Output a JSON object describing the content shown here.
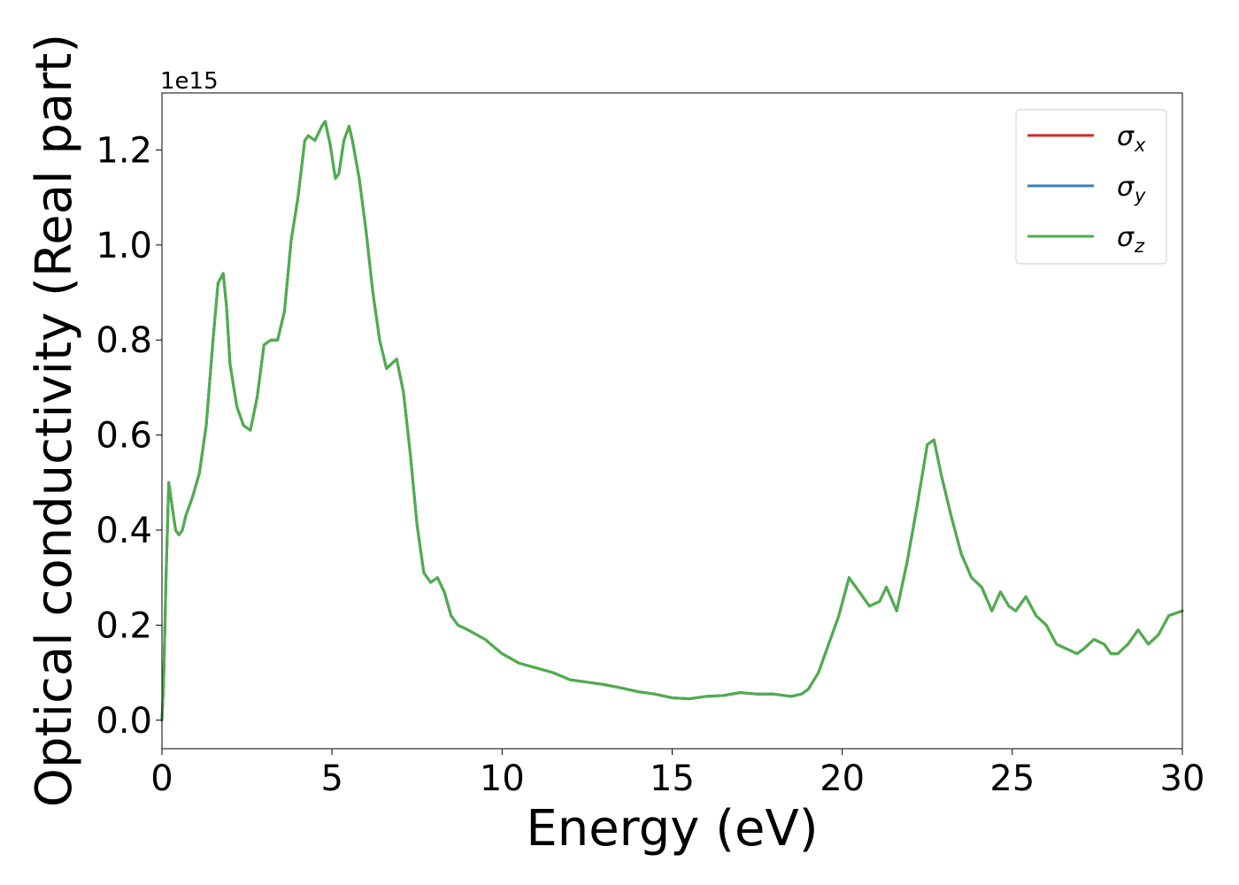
{
  "chart_data": {
    "type": "line",
    "xlabel": "Energy (eV)",
    "ylabel": "Optical conductivity (Real part)",
    "y_offset_label": "1e15",
    "xlim": [
      0,
      30
    ],
    "ylim": [
      -0.06,
      1.32
    ],
    "x_ticks": [
      0,
      5,
      10,
      15,
      20,
      25,
      30
    ],
    "x_tick_labels": [
      "0",
      "5",
      "10",
      "15",
      "20",
      "25",
      "30"
    ],
    "y_ticks": [
      0.0,
      0.2,
      0.4,
      0.6,
      0.8,
      1.0,
      1.2
    ],
    "y_tick_labels": [
      "0.0",
      "0.2",
      "0.4",
      "0.6",
      "0.8",
      "1.0",
      "1.2"
    ],
    "grid": false,
    "legend_position": "top-right",
    "series": [
      {
        "name": "σx",
        "symbol": "σ",
        "subscript": "x",
        "color": "#d62728",
        "x": [
          0,
          0.05,
          0.12,
          0.2,
          0.3,
          0.4,
          0.5,
          0.6,
          0.7,
          0.9,
          1.1,
          1.3,
          1.5,
          1.65,
          1.8,
          1.9,
          2.0,
          2.2,
          2.4,
          2.6,
          2.8,
          3.0,
          3.2,
          3.4,
          3.6,
          3.8,
          4.0,
          4.2,
          4.3,
          4.5,
          4.7,
          4.8,
          4.95,
          5.1,
          5.2,
          5.35,
          5.5,
          5.6,
          5.8,
          6.0,
          6.2,
          6.4,
          6.6,
          6.75,
          6.9,
          7.1,
          7.3,
          7.5,
          7.7,
          7.9,
          8.1,
          8.3,
          8.5,
          8.7,
          9.0,
          9.5,
          10.0,
          10.5,
          11.0,
          11.5,
          12.0,
          12.5,
          13.0,
          13.5,
          14.0,
          14.5,
          15.0,
          15.5,
          16.0,
          16.5,
          17.0,
          17.5,
          18.0,
          18.5,
          18.8,
          19.0,
          19.3,
          19.6,
          19.9,
          20.2,
          20.5,
          20.8,
          21.1,
          21.3,
          21.6,
          21.9,
          22.2,
          22.5,
          22.7,
          22.9,
          23.2,
          23.5,
          23.8,
          24.1,
          24.4,
          24.65,
          24.9,
          25.1,
          25.4,
          25.7,
          26.0,
          26.3,
          26.6,
          26.9,
          27.1,
          27.4,
          27.7,
          27.9,
          28.1,
          28.4,
          28.7,
          29.0,
          29.3,
          29.6,
          30.0
        ],
        "y": [
          0.0,
          0.08,
          0.3,
          0.5,
          0.45,
          0.4,
          0.39,
          0.4,
          0.43,
          0.47,
          0.52,
          0.62,
          0.8,
          0.92,
          0.94,
          0.87,
          0.75,
          0.66,
          0.62,
          0.61,
          0.68,
          0.79,
          0.8,
          0.8,
          0.86,
          1.01,
          1.1,
          1.22,
          1.23,
          1.22,
          1.25,
          1.26,
          1.21,
          1.14,
          1.15,
          1.22,
          1.25,
          1.22,
          1.14,
          1.03,
          0.9,
          0.8,
          0.74,
          0.75,
          0.76,
          0.69,
          0.56,
          0.41,
          0.31,
          0.29,
          0.3,
          0.27,
          0.22,
          0.2,
          0.19,
          0.17,
          0.14,
          0.12,
          0.11,
          0.1,
          0.085,
          0.08,
          0.075,
          0.068,
          0.06,
          0.055,
          0.047,
          0.045,
          0.05,
          0.052,
          0.058,
          0.055,
          0.055,
          0.05,
          0.055,
          0.065,
          0.1,
          0.16,
          0.22,
          0.3,
          0.27,
          0.24,
          0.25,
          0.28,
          0.23,
          0.33,
          0.45,
          0.58,
          0.59,
          0.52,
          0.43,
          0.35,
          0.3,
          0.28,
          0.23,
          0.27,
          0.24,
          0.23,
          0.26,
          0.22,
          0.2,
          0.16,
          0.15,
          0.14,
          0.15,
          0.17,
          0.16,
          0.14,
          0.14,
          0.16,
          0.19,
          0.16,
          0.18,
          0.22,
          0.23
        ]
      },
      {
        "name": "σy",
        "symbol": "σ",
        "subscript": "y",
        "color": "#377eb8",
        "x": [
          0,
          0.05,
          0.12,
          0.2,
          0.3,
          0.4,
          0.5,
          0.6,
          0.7,
          0.9,
          1.1,
          1.3,
          1.5,
          1.65,
          1.8,
          1.9,
          2.0,
          2.2,
          2.4,
          2.6,
          2.8,
          3.0,
          3.2,
          3.4,
          3.6,
          3.8,
          4.0,
          4.2,
          4.3,
          4.5,
          4.7,
          4.8,
          4.95,
          5.1,
          5.2,
          5.35,
          5.5,
          5.6,
          5.8,
          6.0,
          6.2,
          6.4,
          6.6,
          6.75,
          6.9,
          7.1,
          7.3,
          7.5,
          7.7,
          7.9,
          8.1,
          8.3,
          8.5,
          8.7,
          9.0,
          9.5,
          10.0,
          10.5,
          11.0,
          11.5,
          12.0,
          12.5,
          13.0,
          13.5,
          14.0,
          14.5,
          15.0,
          15.5,
          16.0,
          16.5,
          17.0,
          17.5,
          18.0,
          18.5,
          18.8,
          19.0,
          19.3,
          19.6,
          19.9,
          20.2,
          20.5,
          20.8,
          21.1,
          21.3,
          21.6,
          21.9,
          22.2,
          22.5,
          22.7,
          22.9,
          23.2,
          23.5,
          23.8,
          24.1,
          24.4,
          24.65,
          24.9,
          25.1,
          25.4,
          25.7,
          26.0,
          26.3,
          26.6,
          26.9,
          27.1,
          27.4,
          27.7,
          27.9,
          28.1,
          28.4,
          28.7,
          29.0,
          29.3,
          29.6,
          30.0
        ],
        "y": [
          0.0,
          0.08,
          0.3,
          0.5,
          0.45,
          0.4,
          0.39,
          0.4,
          0.43,
          0.47,
          0.52,
          0.62,
          0.8,
          0.92,
          0.94,
          0.87,
          0.75,
          0.66,
          0.62,
          0.61,
          0.68,
          0.79,
          0.8,
          0.8,
          0.86,
          1.01,
          1.1,
          1.22,
          1.23,
          1.22,
          1.25,
          1.26,
          1.21,
          1.14,
          1.15,
          1.22,
          1.25,
          1.22,
          1.14,
          1.03,
          0.9,
          0.8,
          0.74,
          0.75,
          0.76,
          0.69,
          0.56,
          0.41,
          0.31,
          0.29,
          0.3,
          0.27,
          0.22,
          0.2,
          0.19,
          0.17,
          0.14,
          0.12,
          0.11,
          0.1,
          0.085,
          0.08,
          0.075,
          0.068,
          0.06,
          0.055,
          0.047,
          0.045,
          0.05,
          0.052,
          0.058,
          0.055,
          0.055,
          0.05,
          0.055,
          0.065,
          0.1,
          0.16,
          0.22,
          0.3,
          0.27,
          0.24,
          0.25,
          0.28,
          0.23,
          0.33,
          0.45,
          0.58,
          0.59,
          0.52,
          0.43,
          0.35,
          0.3,
          0.28,
          0.23,
          0.27,
          0.24,
          0.23,
          0.26,
          0.22,
          0.2,
          0.16,
          0.15,
          0.14,
          0.15,
          0.17,
          0.16,
          0.14,
          0.14,
          0.16,
          0.19,
          0.16,
          0.18,
          0.22,
          0.23
        ]
      },
      {
        "name": "σz",
        "symbol": "σ",
        "subscript": "z",
        "color": "#4daf4a",
        "x": [
          0,
          0.05,
          0.12,
          0.2,
          0.3,
          0.4,
          0.5,
          0.6,
          0.7,
          0.9,
          1.1,
          1.3,
          1.5,
          1.65,
          1.8,
          1.9,
          2.0,
          2.2,
          2.4,
          2.6,
          2.8,
          3.0,
          3.2,
          3.4,
          3.6,
          3.8,
          4.0,
          4.2,
          4.3,
          4.5,
          4.7,
          4.8,
          4.95,
          5.1,
          5.2,
          5.35,
          5.5,
          5.6,
          5.8,
          6.0,
          6.2,
          6.4,
          6.6,
          6.75,
          6.9,
          7.1,
          7.3,
          7.5,
          7.7,
          7.9,
          8.1,
          8.3,
          8.5,
          8.7,
          9.0,
          9.5,
          10.0,
          10.5,
          11.0,
          11.5,
          12.0,
          12.5,
          13.0,
          13.5,
          14.0,
          14.5,
          15.0,
          15.5,
          16.0,
          16.5,
          17.0,
          17.5,
          18.0,
          18.5,
          18.8,
          19.0,
          19.3,
          19.6,
          19.9,
          20.2,
          20.5,
          20.8,
          21.1,
          21.3,
          21.6,
          21.9,
          22.2,
          22.5,
          22.7,
          22.9,
          23.2,
          23.5,
          23.8,
          24.1,
          24.4,
          24.65,
          24.9,
          25.1,
          25.4,
          25.7,
          26.0,
          26.3,
          26.6,
          26.9,
          27.1,
          27.4,
          27.7,
          27.9,
          28.1,
          28.4,
          28.7,
          29.0,
          29.3,
          29.6,
          30.0
        ],
        "y": [
          0.0,
          0.08,
          0.3,
          0.5,
          0.45,
          0.4,
          0.39,
          0.4,
          0.43,
          0.47,
          0.52,
          0.62,
          0.8,
          0.92,
          0.94,
          0.87,
          0.75,
          0.66,
          0.62,
          0.61,
          0.68,
          0.79,
          0.8,
          0.8,
          0.86,
          1.01,
          1.1,
          1.22,
          1.23,
          1.22,
          1.25,
          1.26,
          1.21,
          1.14,
          1.15,
          1.22,
          1.25,
          1.22,
          1.14,
          1.03,
          0.9,
          0.8,
          0.74,
          0.75,
          0.76,
          0.69,
          0.56,
          0.41,
          0.31,
          0.29,
          0.3,
          0.27,
          0.22,
          0.2,
          0.19,
          0.17,
          0.14,
          0.12,
          0.11,
          0.1,
          0.085,
          0.08,
          0.075,
          0.068,
          0.06,
          0.055,
          0.047,
          0.045,
          0.05,
          0.052,
          0.058,
          0.055,
          0.055,
          0.05,
          0.055,
          0.065,
          0.1,
          0.16,
          0.22,
          0.3,
          0.27,
          0.24,
          0.25,
          0.28,
          0.23,
          0.33,
          0.45,
          0.58,
          0.59,
          0.52,
          0.43,
          0.35,
          0.3,
          0.28,
          0.23,
          0.27,
          0.24,
          0.23,
          0.26,
          0.22,
          0.2,
          0.16,
          0.15,
          0.14,
          0.15,
          0.17,
          0.16,
          0.14,
          0.14,
          0.16,
          0.19,
          0.16,
          0.18,
          0.22,
          0.23
        ]
      }
    ]
  }
}
